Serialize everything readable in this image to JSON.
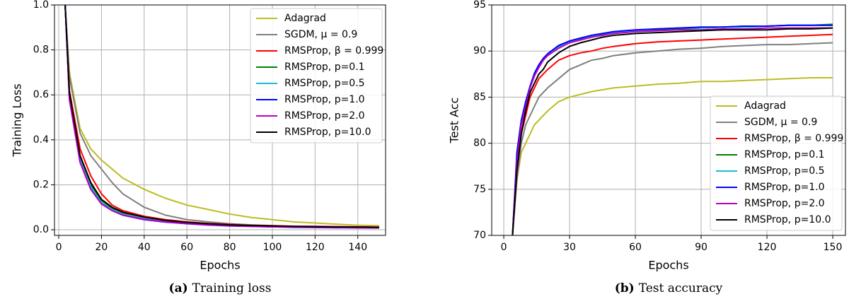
{
  "chart_data": [
    {
      "type": "line",
      "xlabel": "Epochs",
      "ylabel": "Training Loss",
      "caption": {
        "label": "(a)",
        "text": "Training loss"
      },
      "xlim": [
        -2,
        153
      ],
      "ylim": [
        -0.025,
        1.0
      ],
      "xticks": [
        0,
        20,
        40,
        60,
        80,
        100,
        120,
        140
      ],
      "yticks": [
        {
          "value": 0,
          "label": "0.0"
        },
        0.2,
        0.4,
        0.6,
        0.8,
        {
          "value": 1,
          "label": "1.0"
        }
      ],
      "grid": true,
      "legend": "upper right",
      "x": [
        3,
        5,
        10,
        15,
        20,
        25,
        30,
        40,
        50,
        60,
        70,
        80,
        90,
        100,
        110,
        120,
        130,
        140,
        150
      ],
      "series": [
        {
          "name": "Adagrad",
          "color": "#bcbd22",
          "values": [
            1.0,
            0.7,
            0.45,
            0.36,
            0.31,
            0.27,
            0.23,
            0.18,
            0.14,
            0.11,
            0.09,
            0.07,
            0.055,
            0.045,
            0.035,
            0.03,
            0.025,
            0.02,
            0.018
          ]
        },
        {
          "name": "SGDM, μ = 0.9",
          "color": "#7f7f7f",
          "values": [
            1.0,
            0.68,
            0.43,
            0.33,
            0.27,
            0.21,
            0.16,
            0.1,
            0.065,
            0.045,
            0.035,
            0.027,
            0.022,
            0.018,
            0.015,
            0.013,
            0.012,
            0.011,
            0.01
          ]
        },
        {
          "name": "RMSProp, β = 0.999",
          "color": "#ff0000",
          "values": [
            1.0,
            0.62,
            0.36,
            0.24,
            0.16,
            0.11,
            0.085,
            0.06,
            0.045,
            0.035,
            0.028,
            0.024,
            0.02,
            0.018,
            0.016,
            0.015,
            0.014,
            0.013,
            0.012
          ]
        },
        {
          "name": "RMSProp, p=0.1",
          "color": "#008000",
          "values": [
            1.0,
            0.6,
            0.32,
            0.2,
            0.13,
            0.095,
            0.075,
            0.055,
            0.04,
            0.032,
            0.026,
            0.021,
            0.018,
            0.016,
            0.014,
            0.013,
            0.012,
            0.011,
            0.01
          ]
        },
        {
          "name": "RMSProp, p=0.5",
          "color": "#17becf",
          "values": [
            1.0,
            0.59,
            0.31,
            0.19,
            0.12,
            0.09,
            0.07,
            0.05,
            0.037,
            0.029,
            0.023,
            0.019,
            0.016,
            0.014,
            0.012,
            0.011,
            0.01,
            0.009,
            0.009
          ]
        },
        {
          "name": "RMSProp, p=1.0",
          "color": "#0000ff",
          "values": [
            1.0,
            0.58,
            0.3,
            0.18,
            0.115,
            0.085,
            0.065,
            0.045,
            0.034,
            0.027,
            0.021,
            0.017,
            0.015,
            0.013,
            0.011,
            0.01,
            0.009,
            0.009,
            0.008
          ]
        },
        {
          "name": "RMSProp, p=2.0",
          "color": "#bf00bf",
          "values": [
            1.0,
            0.58,
            0.3,
            0.18,
            0.115,
            0.085,
            0.066,
            0.046,
            0.035,
            0.028,
            0.022,
            0.018,
            0.015,
            0.013,
            0.012,
            0.011,
            0.01,
            0.009,
            0.009
          ]
        },
        {
          "name": "RMSProp, p=10.0",
          "color": "#000000",
          "values": [
            1.0,
            0.61,
            0.33,
            0.21,
            0.135,
            0.1,
            0.078,
            0.056,
            0.042,
            0.033,
            0.027,
            0.022,
            0.019,
            0.017,
            0.015,
            0.014,
            0.013,
            0.012,
            0.011
          ]
        }
      ]
    },
    {
      "type": "line",
      "xlabel": "Epochs",
      "ylabel": "Test Acc",
      "caption": {
        "label": "(b)",
        "text": "Test accuracy"
      },
      "xlim": [
        -5.5,
        155.8
      ],
      "ylim": [
        70,
        95
      ],
      "xticks": [
        0,
        30,
        60,
        90,
        120,
        150
      ],
      "yticks": [
        70,
        75,
        80,
        85,
        90,
        95
      ],
      "grid": true,
      "legend": "lower right",
      "x": [
        4,
        6,
        8,
        10,
        12,
        14,
        16,
        18,
        20,
        25,
        30,
        35,
        40,
        45,
        50,
        60,
        70,
        80,
        90,
        100,
        110,
        120,
        130,
        140,
        150
      ],
      "series": [
        {
          "name": "Adagrad",
          "color": "#bcbd22",
          "values": [
            70,
            76,
            79,
            80,
            81,
            82,
            82.5,
            83,
            83.5,
            84.5,
            85,
            85.3,
            85.6,
            85.8,
            86,
            86.2,
            86.4,
            86.5,
            86.7,
            86.7,
            86.8,
            86.9,
            87,
            87.1,
            87.1
          ]
        },
        {
          "name": "SGDM, μ = 0.9",
          "color": "#7f7f7f",
          "values": [
            70,
            76,
            80,
            82,
            83,
            84,
            85,
            85.5,
            86,
            87,
            88,
            88.5,
            89,
            89.2,
            89.5,
            89.8,
            90,
            90.2,
            90.3,
            90.5,
            90.6,
            90.7,
            90.7,
            90.8,
            90.9
          ]
        },
        {
          "name": "RMSProp, β = 0.999",
          "color": "#ff0000",
          "values": [
            70,
            77,
            81,
            83,
            85,
            86,
            87,
            87.5,
            88,
            89,
            89.5,
            89.8,
            90,
            90.3,
            90.5,
            90.8,
            91,
            91.1,
            91.2,
            91.3,
            91.4,
            91.5,
            91.6,
            91.7,
            91.8
          ]
        },
        {
          "name": "RMSProp, p=0.1",
          "color": "#008000",
          "values": [
            70,
            78,
            82,
            84,
            86,
            87.5,
            88.5,
            89,
            89.5,
            90.5,
            91,
            91.3,
            91.6,
            91.8,
            92,
            92.2,
            92.3,
            92.4,
            92.5,
            92.6,
            92.7,
            92.7,
            92.8,
            92.8,
            92.9
          ]
        },
        {
          "name": "RMSProp, p=0.5",
          "color": "#17becf",
          "values": [
            70,
            78.5,
            82,
            84.5,
            86,
            87.3,
            88.3,
            89,
            89.6,
            90.4,
            91,
            91.4,
            91.6,
            91.9,
            92,
            92.2,
            92.4,
            92.5,
            92.5,
            92.6,
            92.6,
            92.7,
            92.8,
            92.8,
            92.8
          ]
        },
        {
          "name": "RMSProp, p=1.0",
          "color": "#0000ff",
          "values": [
            70,
            79,
            82.5,
            84.5,
            86.2,
            87.6,
            88.5,
            89.2,
            89.7,
            90.6,
            91.1,
            91.4,
            91.7,
            91.9,
            92.1,
            92.3,
            92.4,
            92.5,
            92.6,
            92.6,
            92.7,
            92.7,
            92.8,
            92.8,
            92.8
          ]
        },
        {
          "name": "RMSProp, p=2.0",
          "color": "#bf00bf",
          "values": [
            70,
            78,
            82,
            84,
            86,
            87.3,
            88.2,
            89,
            89.5,
            90.3,
            90.9,
            91.2,
            91.5,
            91.7,
            91.9,
            92.1,
            92.2,
            92.3,
            92.3,
            92.4,
            92.4,
            92.5,
            92.5,
            92.5,
            92.5
          ]
        },
        {
          "name": "RMSProp, p=10.0",
          "color": "#000000",
          "values": [
            70,
            77,
            81,
            83.5,
            85.5,
            86.5,
            87.5,
            88,
            88.8,
            89.8,
            90.5,
            90.9,
            91.2,
            91.5,
            91.7,
            91.9,
            92,
            92.1,
            92.2,
            92.3,
            92.3,
            92.3,
            92.4,
            92.4,
            92.5
          ]
        }
      ]
    }
  ]
}
